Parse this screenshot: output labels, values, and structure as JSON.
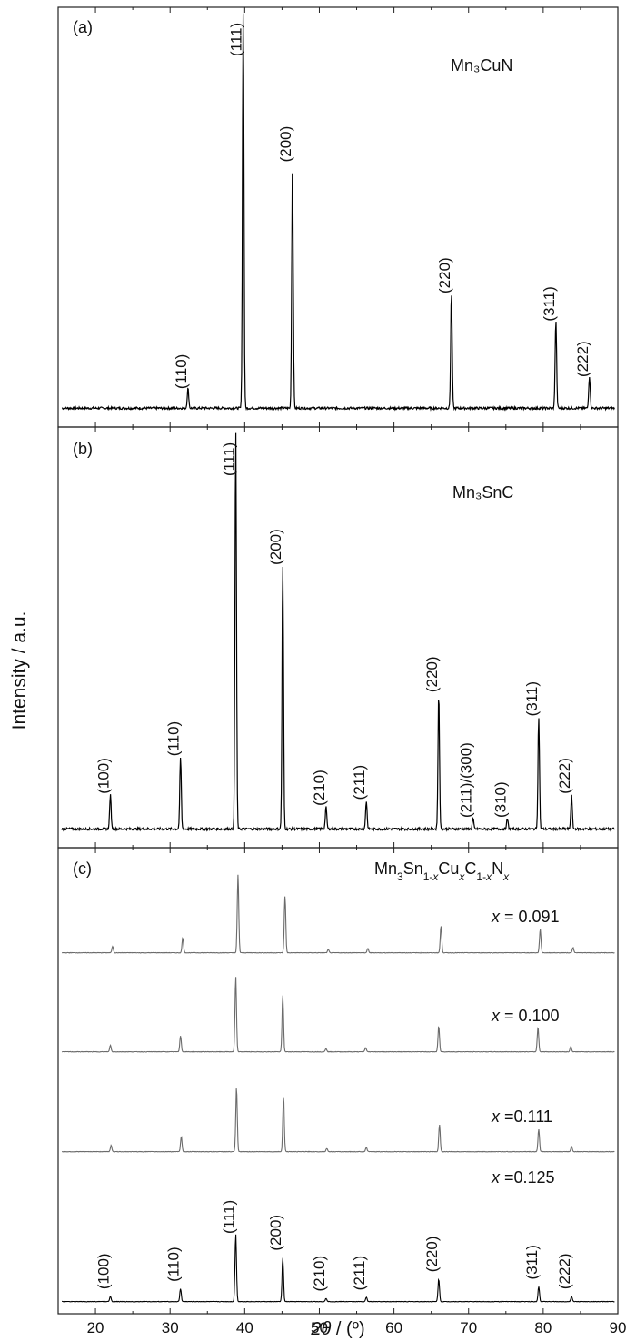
{
  "figure": {
    "ylabel": "Intensity / a.u.",
    "xlabel_italic": "2θ",
    "xlabel_rest": " / (º)"
  },
  "chart_data": [
    {
      "type": "line",
      "panel": "(a)",
      "sample": "Mn₃CuN",
      "xlim": [
        15,
        90
      ],
      "x_ticks": [
        20,
        30,
        40,
        50,
        60,
        70,
        80,
        90
      ],
      "ylim": [
        0,
        1
      ],
      "background": 0.02,
      "series": [
        {
          "peaks": [
            {
              "x": 32.4,
              "y": 0.05,
              "label": "(110)"
            },
            {
              "x": 39.8,
              "y": 1.0,
              "label": "(111)"
            },
            {
              "x": 46.4,
              "y": 0.62,
              "label": "(200)"
            },
            {
              "x": 67.7,
              "y": 0.29,
              "label": "(220)"
            },
            {
              "x": 81.7,
              "y": 0.22,
              "label": "(311)"
            },
            {
              "x": 86.2,
              "y": 0.08,
              "label": "(222)"
            }
          ]
        }
      ]
    },
    {
      "type": "line",
      "panel": "(b)",
      "sample": "Mn₃SnC",
      "xlim": [
        15,
        90
      ],
      "x_ticks": [
        20,
        30,
        40,
        50,
        60,
        70,
        80,
        90
      ],
      "ylim": [
        0,
        1
      ],
      "background": 0.015,
      "series": [
        {
          "peaks": [
            {
              "x": 22.0,
              "y": 0.085,
              "label": "(100)"
            },
            {
              "x": 31.4,
              "y": 0.18,
              "label": "(110)"
            },
            {
              "x": 38.8,
              "y": 1.0,
              "label": "(111)"
            },
            {
              "x": 45.1,
              "y": 0.66,
              "label": "(200)"
            },
            {
              "x": 50.9,
              "y": 0.055,
              "label": "(210)"
            },
            {
              "x": 56.3,
              "y": 0.07,
              "label": "(211)"
            },
            {
              "x": 66.0,
              "y": 0.34,
              "label": "(220)"
            },
            {
              "x": 70.6,
              "y": 0.025,
              "label": "(211)/(300)"
            },
            {
              "x": 75.2,
              "y": 0.025,
              "label": "(310)"
            },
            {
              "x": 79.4,
              "y": 0.28,
              "label": "(311)"
            },
            {
              "x": 83.8,
              "y": 0.085,
              "label": "(222)"
            }
          ]
        }
      ]
    },
    {
      "type": "line",
      "panel": "(c)",
      "formula": {
        "a": "Mn",
        "s1": "3",
        "b": "Sn",
        "s2": "1-",
        "s3": "x",
        "c": "Cu",
        "s4": "x",
        "d": "C",
        "s5": "1-",
        "s6": "x",
        "e": "N",
        "s7": "x"
      },
      "xlim": [
        15,
        90
      ],
      "x_ticks": [
        20,
        30,
        40,
        50,
        60,
        70,
        80,
        90
      ],
      "series": [
        {
          "name_var": "x",
          "name_text": " = 0.091",
          "peaks": [
            {
              "x": 22.3,
              "y": 0.06
            },
            {
              "x": 31.7,
              "y": 0.14
            },
            {
              "x": 39.1,
              "y": 0.73
            },
            {
              "x": 45.4,
              "y": 0.53
            },
            {
              "x": 51.2,
              "y": 0.03
            },
            {
              "x": 56.5,
              "y": 0.04
            },
            {
              "x": 66.3,
              "y": 0.25
            },
            {
              "x": 79.6,
              "y": 0.22
            },
            {
              "x": 84.0,
              "y": 0.05
            }
          ]
        },
        {
          "name_var": "x",
          "name_text": " = 0.100",
          "peaks": [
            {
              "x": 22.0,
              "y": 0.06
            },
            {
              "x": 31.4,
              "y": 0.15
            },
            {
              "x": 38.8,
              "y": 0.7
            },
            {
              "x": 45.1,
              "y": 0.53
            },
            {
              "x": 50.9,
              "y": 0.03
            },
            {
              "x": 56.2,
              "y": 0.04
            },
            {
              "x": 66.0,
              "y": 0.24
            },
            {
              "x": 79.3,
              "y": 0.23
            },
            {
              "x": 83.7,
              "y": 0.05
            }
          ]
        },
        {
          "name_var": "x",
          "name_text": " =0.111",
          "peaks": [
            {
              "x": 22.1,
              "y": 0.06
            },
            {
              "x": 31.5,
              "y": 0.14
            },
            {
              "x": 38.9,
              "y": 0.6
            },
            {
              "x": 45.2,
              "y": 0.52
            },
            {
              "x": 51.0,
              "y": 0.03
            },
            {
              "x": 56.3,
              "y": 0.04
            },
            {
              "x": 66.1,
              "y": 0.25
            },
            {
              "x": 79.4,
              "y": 0.21
            },
            {
              "x": 83.8,
              "y": 0.05
            }
          ]
        },
        {
          "name_var": "x",
          "name_text": " =0.125",
          "peaks": [
            {
              "x": 22.0,
              "y": 0.05,
              "label": "(100)"
            },
            {
              "x": 31.4,
              "y": 0.12,
              "label": "(110)"
            },
            {
              "x": 38.8,
              "y": 0.63,
              "label": "(111)"
            },
            {
              "x": 45.1,
              "y": 0.41,
              "label": "(200)"
            },
            {
              "x": 50.9,
              "y": 0.03,
              "label": "(210)"
            },
            {
              "x": 56.3,
              "y": 0.04,
              "label": "(211)"
            },
            {
              "x": 66.0,
              "y": 0.21,
              "label": "(220)"
            },
            {
              "x": 79.4,
              "y": 0.14,
              "label": "(311)"
            },
            {
              "x": 83.8,
              "y": 0.05,
              "label": "(222)"
            }
          ]
        }
      ]
    }
  ]
}
